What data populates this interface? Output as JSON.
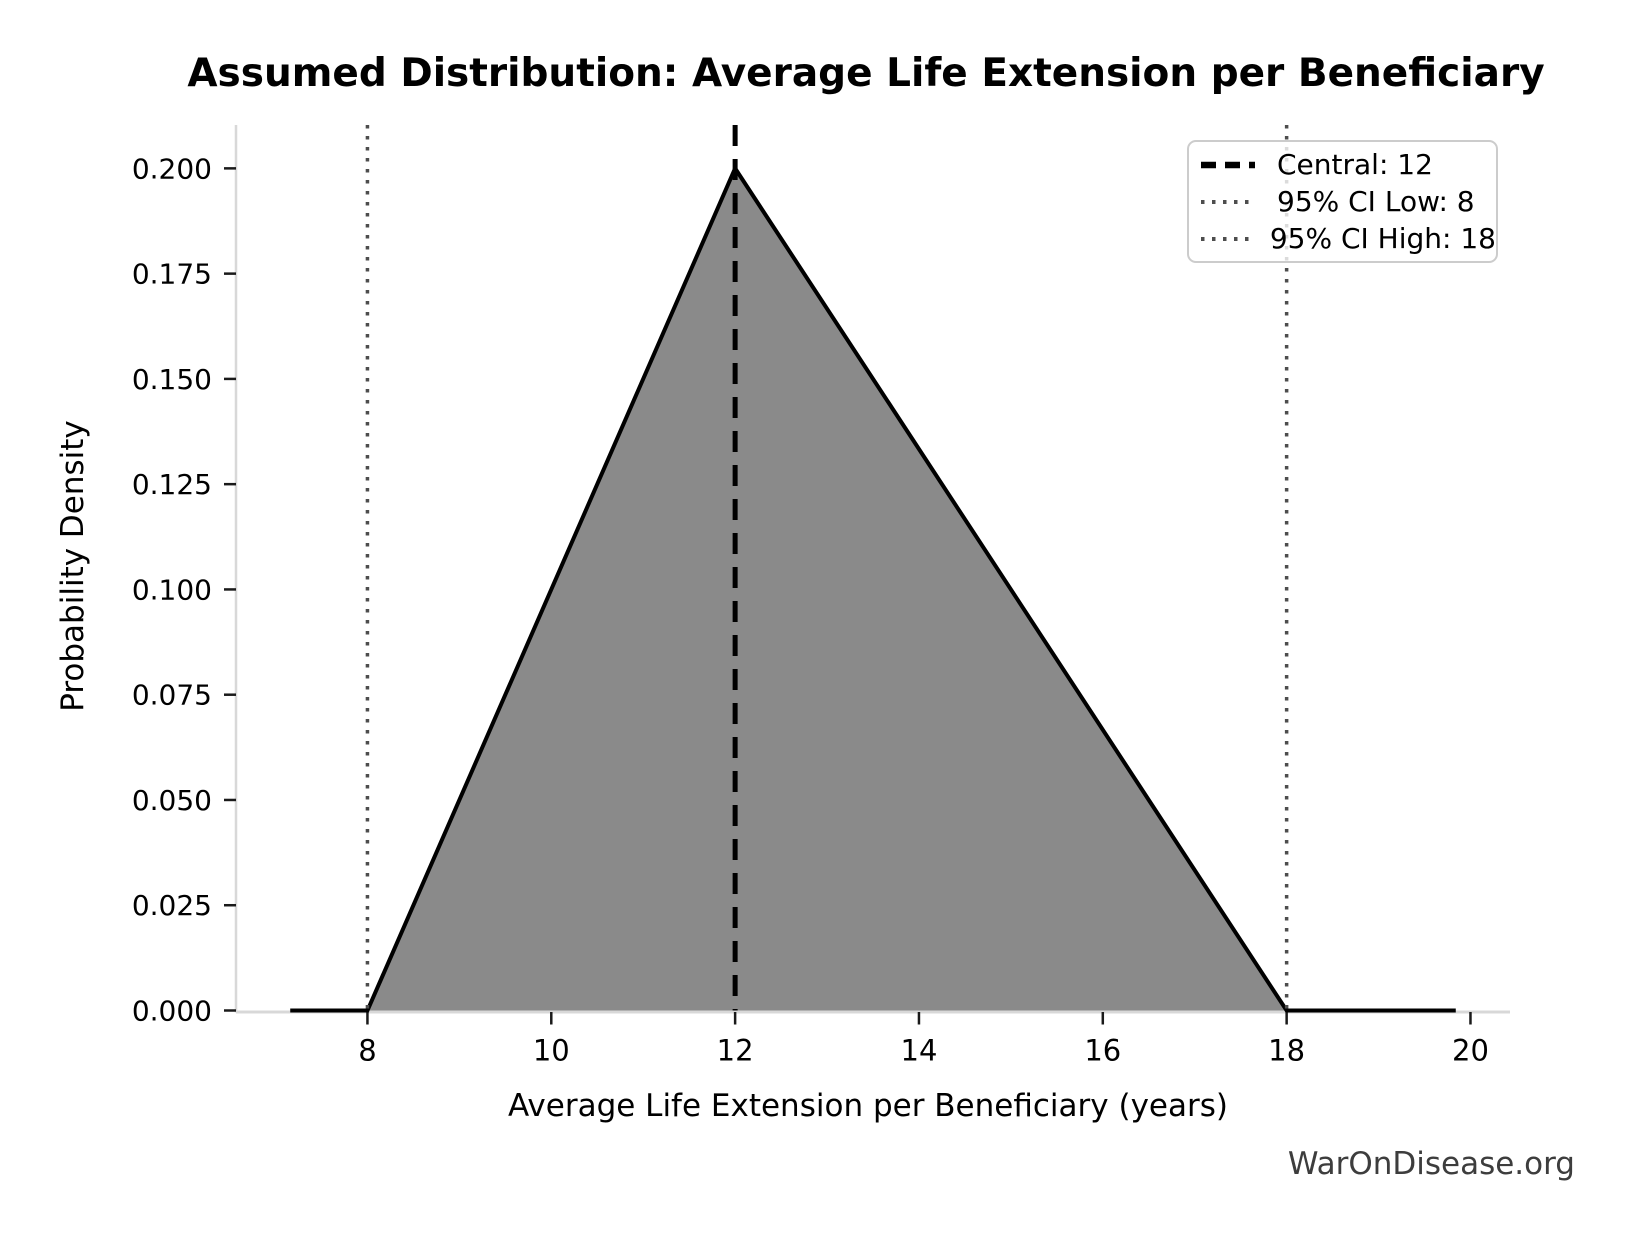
{
  "figure": {
    "title": "Assumed Distribution: Average Life Extension per Beneficiary",
    "xlabel": "Average Life Extension per Beneficiary (years)",
    "ylabel": "Probability Density",
    "footer": "WarOnDisease.org"
  },
  "chart_data": {
    "type": "area",
    "title": "Assumed Distribution: Average Life Extension per Beneficiary",
    "xlabel": "Average Life Extension per Beneficiary (years)",
    "ylabel": "Probability Density",
    "distribution": "triangular",
    "triangle": {
      "low": 8,
      "mode": 12,
      "high": 18,
      "peak_density": 0.2
    },
    "fill_polygon": [
      [
        8,
        0
      ],
      [
        12,
        0.2
      ],
      [
        18,
        0
      ]
    ],
    "pdf_line": [
      [
        7.16,
        0
      ],
      [
        8,
        0
      ],
      [
        12,
        0.2
      ],
      [
        18,
        0
      ],
      [
        19.84,
        0
      ]
    ],
    "vlines": [
      {
        "x": 8,
        "style": "dotted",
        "color": "#4d4d4d",
        "label": "95% CI Low: 8"
      },
      {
        "x": 18,
        "style": "dotted",
        "color": "#4d4d4d",
        "label": "95% CI High: 18"
      },
      {
        "x": 12,
        "style": "dashed",
        "color": "#000000",
        "label": "Central: 12"
      }
    ],
    "x_ticks": [
      8,
      10,
      12,
      14,
      16,
      18,
      20
    ],
    "y_tick_labels": [
      "0.000",
      "0.025",
      "0.050",
      "0.075",
      "0.100",
      "0.125",
      "0.150",
      "0.175",
      "0.200"
    ],
    "y_tick_values": [
      0,
      0.025,
      0.05,
      0.075,
      0.1,
      0.125,
      0.15,
      0.175,
      0.2
    ],
    "xlim": [
      6.57,
      20.43
    ],
    "ylim": [
      0,
      0.2103
    ],
    "grid": false,
    "legend_position": "upper right",
    "colors": {
      "fill": "#8a8a8a",
      "pdf_line": "#000000",
      "dashed_line": "#000000",
      "dotted_line": "#4d4d4d",
      "spine": "#d8d8d8",
      "tick_mark": "#1a1a1a",
      "tick_label": "#000000",
      "footer_text": "#3d3d3d",
      "legend_border": "#cccccc"
    }
  },
  "legend": {
    "items": [
      {
        "label": "Central: 12",
        "style": "dashed",
        "color": "#000000"
      },
      {
        "label": "95% CI Low: 8",
        "style": "dotted",
        "color": "#4d4d4d"
      },
      {
        "label": "95% CI High: 18",
        "style": "dotted",
        "color": "#4d4d4d"
      }
    ]
  }
}
